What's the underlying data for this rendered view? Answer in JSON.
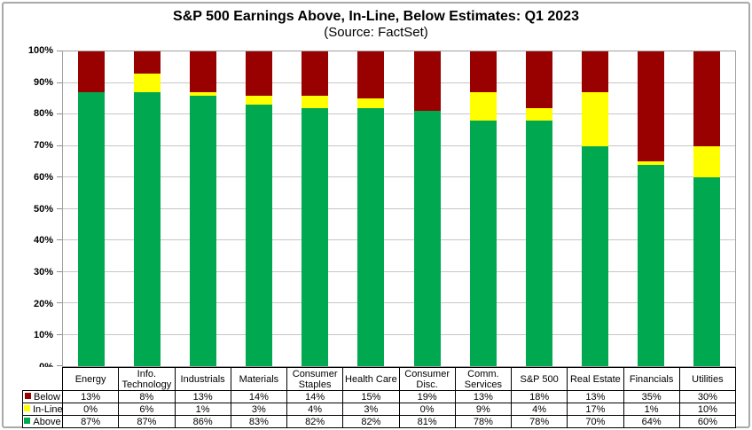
{
  "title": "S&P 500 Earnings Above, In-Line, Below Estimates: Q1 2023",
  "subtitle": "(Source: FactSet)",
  "chart_data": {
    "type": "bar",
    "stacked": true,
    "title": "S&P 500 Earnings Above, In-Line, Below Estimates: Q1 2023",
    "subtitle": "(Source: FactSet)",
    "categories": [
      "Energy",
      "Info. Technology",
      "Industrials",
      "Materials",
      "Consumer Staples",
      "Health Care",
      "Consumer Disc.",
      "Comm. Services",
      "S&P 500",
      "Real Estate",
      "Financials",
      "Utilities"
    ],
    "series": [
      {
        "name": "Below",
        "color": "#990000",
        "values": [
          13,
          8,
          13,
          14,
          14,
          15,
          19,
          13,
          18,
          13,
          35,
          30
        ]
      },
      {
        "name": "In-Line",
        "color": "#ffff00",
        "values": [
          0,
          6,
          1,
          3,
          4,
          3,
          0,
          9,
          4,
          17,
          1,
          10
        ]
      },
      {
        "name": "Above",
        "color": "#00a850",
        "values": [
          87,
          87,
          86,
          83,
          82,
          82,
          81,
          78,
          78,
          70,
          64,
          60
        ]
      }
    ],
    "xlabel": "",
    "ylabel": "",
    "ylim": [
      0,
      100
    ],
    "ytick_step": 10,
    "ytick_labels": [
      "100%",
      "90%",
      "80%",
      "70%",
      "60%",
      "50%",
      "40%",
      "30%",
      "20%",
      "10%",
      "0%"
    ],
    "value_suffix": "%",
    "grid": true,
    "legend_position": "data-table-left"
  }
}
